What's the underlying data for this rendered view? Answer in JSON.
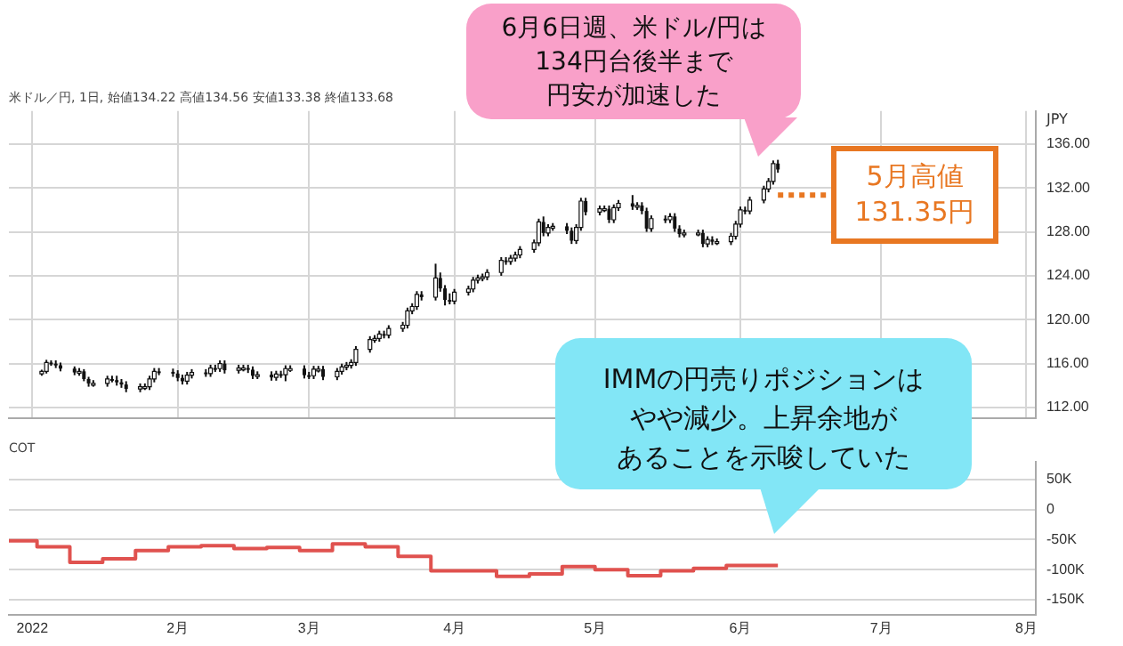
{
  "chart_data": [
    {
      "type": "candlestick",
      "title": "米ドル／円, 1日, 始値134.22 高値134.56 安値133.38 終値133.68",
      "ylabel": "JPY",
      "x": [
        "2022-01-03",
        "2022-01-04",
        "2022-01-05",
        "2022-01-06",
        "2022-01-07",
        "2022-01-10",
        "2022-01-11",
        "2022-01-12",
        "2022-01-13",
        "2022-01-14",
        "2022-01-17",
        "2022-01-18",
        "2022-01-19",
        "2022-01-20",
        "2022-01-21",
        "2022-01-24",
        "2022-01-25",
        "2022-01-26",
        "2022-01-27",
        "2022-01-28",
        "2022-01-31",
        "2022-02-01",
        "2022-02-02",
        "2022-02-03",
        "2022-02-04",
        "2022-02-07",
        "2022-02-08",
        "2022-02-09",
        "2022-02-10",
        "2022-02-11",
        "2022-02-14",
        "2022-02-15",
        "2022-02-16",
        "2022-02-17",
        "2022-02-18",
        "2022-02-21",
        "2022-02-22",
        "2022-02-23",
        "2022-02-24",
        "2022-02-25",
        "2022-02-28",
        "2022-03-01",
        "2022-03-02",
        "2022-03-03",
        "2022-03-04",
        "2022-03-07",
        "2022-03-08",
        "2022-03-09",
        "2022-03-10",
        "2022-03-11",
        "2022-03-14",
        "2022-03-15",
        "2022-03-16",
        "2022-03-17",
        "2022-03-18",
        "2022-03-21",
        "2022-03-22",
        "2022-03-23",
        "2022-03-24",
        "2022-03-25",
        "2022-03-28",
        "2022-03-29",
        "2022-03-30",
        "2022-03-31",
        "2022-04-01",
        "2022-04-04",
        "2022-04-05",
        "2022-04-06",
        "2022-04-07",
        "2022-04-08",
        "2022-04-11",
        "2022-04-12",
        "2022-04-13",
        "2022-04-14",
        "2022-04-15",
        "2022-04-18",
        "2022-04-19",
        "2022-04-20",
        "2022-04-21",
        "2022-04-22",
        "2022-04-25",
        "2022-04-26",
        "2022-04-27",
        "2022-04-28",
        "2022-04-29",
        "2022-05-02",
        "2022-05-03",
        "2022-05-04",
        "2022-05-05",
        "2022-05-06",
        "2022-05-09",
        "2022-05-10",
        "2022-05-11",
        "2022-05-12",
        "2022-05-13",
        "2022-05-16",
        "2022-05-17",
        "2022-05-18",
        "2022-05-19",
        "2022-05-20",
        "2022-05-23",
        "2022-05-24",
        "2022-05-25",
        "2022-05-26",
        "2022-05-27",
        "2022-05-30",
        "2022-05-31",
        "2022-06-01",
        "2022-06-02",
        "2022-06-03",
        "2022-06-06",
        "2022-06-07",
        "2022-06-08",
        "2022-06-09"
      ],
      "ohlc": [
        [
          115.08,
          115.45,
          114.9,
          115.3
        ],
        [
          115.3,
          116.35,
          115.1,
          116.1
        ],
        [
          116.1,
          116.3,
          115.8,
          116.0
        ],
        [
          116.0,
          116.3,
          115.6,
          115.85
        ],
        [
          115.85,
          116.1,
          115.3,
          115.55
        ],
        [
          115.55,
          115.75,
          114.95,
          115.2
        ],
        [
          115.2,
          115.6,
          114.9,
          115.3
        ],
        [
          115.3,
          115.5,
          114.4,
          114.6
        ],
        [
          114.6,
          114.8,
          113.9,
          114.2
        ],
        [
          114.2,
          114.5,
          113.9,
          114.2
        ],
        [
          114.2,
          114.9,
          113.9,
          114.6
        ],
        [
          114.6,
          114.9,
          114.3,
          114.5
        ],
        [
          114.5,
          114.9,
          114.0,
          114.3
        ],
        [
          114.3,
          114.6,
          113.8,
          114.1
        ],
        [
          114.1,
          114.4,
          113.4,
          113.7
        ],
        [
          113.7,
          114.2,
          113.4,
          113.9
        ],
        [
          113.9,
          114.2,
          113.6,
          113.9
        ],
        [
          113.9,
          114.9,
          113.6,
          114.6
        ],
        [
          114.6,
          115.6,
          114.3,
          115.3
        ],
        [
          115.3,
          115.6,
          114.95,
          115.25
        ],
        [
          115.25,
          115.55,
          114.8,
          115.1
        ],
        [
          115.1,
          115.4,
          114.4,
          114.7
        ],
        [
          114.7,
          115.0,
          114.1,
          114.4
        ],
        [
          114.4,
          115.25,
          114.1,
          114.95
        ],
        [
          114.95,
          115.5,
          114.65,
          115.2
        ],
        [
          115.2,
          115.5,
          114.8,
          115.1
        ],
        [
          115.1,
          115.9,
          114.8,
          115.6
        ],
        [
          115.6,
          115.9,
          115.25,
          115.55
        ],
        [
          115.55,
          116.3,
          115.25,
          116.0
        ],
        [
          116.0,
          116.3,
          115.1,
          115.4
        ],
        [
          115.4,
          115.9,
          115.1,
          115.6
        ],
        [
          115.6,
          115.9,
          115.3,
          115.6
        ],
        [
          115.6,
          115.9,
          115.15,
          115.45
        ],
        [
          115.45,
          115.75,
          114.6,
          114.9
        ],
        [
          114.9,
          115.3,
          114.6,
          115.0
        ],
        [
          115.0,
          115.3,
          114.45,
          114.75
        ],
        [
          114.75,
          115.35,
          114.45,
          115.05
        ],
        [
          115.05,
          115.35,
          114.7,
          115.0
        ],
        [
          115.0,
          115.85,
          114.4,
          115.55
        ],
        [
          115.55,
          115.85,
          115.25,
          115.55
        ],
        [
          115.55,
          115.85,
          114.65,
          114.95
        ],
        [
          114.95,
          115.25,
          114.6,
          114.9
        ],
        [
          114.9,
          115.8,
          114.6,
          115.5
        ],
        [
          115.5,
          115.8,
          115.2,
          115.5
        ],
        [
          115.5,
          115.8,
          114.5,
          114.8
        ],
        [
          114.8,
          115.6,
          114.5,
          115.3
        ],
        [
          115.3,
          116.0,
          115.0,
          115.7
        ],
        [
          115.7,
          116.15,
          115.4,
          115.85
        ],
        [
          115.85,
          116.4,
          115.55,
          116.1
        ],
        [
          116.1,
          117.6,
          115.8,
          117.3
        ],
        [
          117.3,
          118.5,
          117.0,
          118.2
        ],
        [
          118.2,
          118.6,
          117.9,
          118.3
        ],
        [
          118.3,
          119.0,
          118.0,
          118.7
        ],
        [
          118.7,
          119.0,
          118.3,
          118.6
        ],
        [
          118.6,
          119.5,
          118.3,
          119.2
        ],
        [
          119.2,
          119.8,
          118.9,
          119.5
        ],
        [
          119.5,
          121.1,
          119.2,
          120.8
        ],
        [
          120.8,
          121.5,
          120.5,
          121.2
        ],
        [
          121.2,
          122.6,
          120.9,
          122.3
        ],
        [
          122.3,
          122.6,
          121.75,
          122.05
        ],
        [
          122.05,
          125.1,
          121.75,
          123.8
        ],
        [
          123.8,
          124.3,
          122.55,
          122.85
        ],
        [
          122.85,
          123.15,
          121.3,
          121.8
        ],
        [
          121.8,
          122.4,
          121.4,
          121.7
        ],
        [
          121.7,
          122.8,
          121.4,
          122.5
        ],
        [
          122.5,
          123.1,
          122.2,
          122.8
        ],
        [
          122.8,
          123.9,
          122.5,
          123.6
        ],
        [
          123.6,
          124.1,
          123.3,
          123.8
        ],
        [
          123.8,
          124.2,
          123.5,
          123.9
        ],
        [
          123.9,
          124.6,
          123.6,
          124.3
        ],
        [
          124.3,
          125.7,
          124.0,
          125.4
        ],
        [
          125.4,
          125.7,
          125.0,
          125.3
        ],
        [
          125.3,
          125.9,
          125.0,
          125.6
        ],
        [
          125.6,
          126.2,
          125.3,
          125.9
        ],
        [
          125.9,
          126.7,
          125.6,
          126.4
        ],
        [
          126.4,
          127.3,
          126.1,
          127.0
        ],
        [
          127.0,
          129.2,
          126.7,
          128.9
        ],
        [
          128.9,
          129.4,
          127.6,
          127.9
        ],
        [
          127.9,
          128.7,
          127.6,
          128.4
        ],
        [
          128.4,
          128.8,
          128.1,
          128.5
        ],
        [
          128.5,
          128.8,
          127.8,
          128.1
        ],
        [
          128.1,
          128.4,
          126.9,
          127.2
        ],
        [
          127.2,
          128.7,
          126.9,
          128.4
        ],
        [
          128.4,
          131.1,
          128.1,
          130.8
        ],
        [
          130.8,
          131.1,
          129.5,
          129.8
        ],
        [
          129.8,
          130.4,
          129.5,
          130.1
        ],
        [
          130.1,
          130.4,
          129.8,
          130.1
        ],
        [
          130.1,
          130.4,
          128.8,
          129.1
        ],
        [
          129.1,
          130.5,
          128.8,
          130.2
        ],
        [
          130.2,
          130.9,
          129.9,
          130.6
        ],
        [
          130.6,
          131.35,
          130.0,
          130.3
        ],
        [
          130.3,
          130.7,
          130.0,
          130.4
        ],
        [
          130.4,
          130.7,
          129.6,
          129.9
        ],
        [
          129.9,
          130.2,
          128.0,
          128.3
        ],
        [
          128.3,
          129.5,
          128.0,
          129.2
        ],
        [
          129.2,
          129.5,
          128.8,
          129.1
        ],
        [
          129.1,
          129.7,
          128.8,
          129.4
        ],
        [
          129.4,
          129.7,
          128.0,
          128.3
        ],
        [
          128.3,
          128.6,
          127.5,
          127.8
        ],
        [
          127.8,
          128.2,
          127.5,
          127.9
        ],
        [
          127.9,
          128.2,
          127.6,
          127.9
        ],
        [
          127.9,
          128.2,
          126.6,
          126.9
        ],
        [
          126.9,
          127.6,
          126.6,
          127.3
        ],
        [
          127.3,
          127.6,
          126.8,
          127.1
        ],
        [
          127.1,
          127.4,
          126.8,
          127.1
        ],
        [
          127.1,
          127.9,
          126.8,
          127.6
        ],
        [
          127.6,
          129.0,
          127.3,
          128.7
        ],
        [
          128.7,
          130.3,
          128.4,
          130.0
        ],
        [
          130.0,
          130.3,
          129.6,
          129.9
        ],
        [
          129.9,
          131.2,
          129.6,
          130.9
        ],
        [
          130.9,
          132.2,
          130.6,
          131.9
        ],
        [
          131.9,
          132.9,
          131.6,
          132.6
        ],
        [
          132.6,
          134.5,
          132.3,
          134.22
        ],
        [
          134.22,
          134.56,
          133.38,
          133.68
        ]
      ],
      "xlim": [
        "2021-12-27",
        "2022-08-03"
      ],
      "xticks": [
        {
          "value": "2022-01-01",
          "label": null
        },
        {
          "value": "2022-02-01",
          "label": null
        },
        {
          "value": "2022-03-01",
          "label": null
        },
        {
          "value": "2022-04-01",
          "label": null
        },
        {
          "value": "2022-05-01",
          "label": null
        },
        {
          "value": "2022-06-01",
          "label": null
        },
        {
          "value": "2022-07-01",
          "label": null
        },
        {
          "value": "2022-08-01",
          "label": null
        }
      ],
      "ylim": [
        111,
        139
      ],
      "yticks": [
        {
          "value": 112,
          "label": "112.00"
        },
        {
          "value": 116,
          "label": "116.00"
        },
        {
          "value": 120,
          "label": "120.00"
        },
        {
          "value": 124,
          "label": "124.00"
        },
        {
          "value": 128,
          "label": "128.00"
        },
        {
          "value": 132,
          "label": "132.00"
        },
        {
          "value": 136,
          "label": "136.00"
        }
      ],
      "grid": true,
      "tick_labels": "y",
      "ref_lines": [
        {
          "axis": "y",
          "value": 131.35,
          "label": "5月高値\n131.35円",
          "color": "#e87722",
          "line_style": "dotted"
        }
      ],
      "annotations": [
        "6月6日週、米ドル/円は134円台後半まで円安が加速した"
      ]
    },
    {
      "type": "step",
      "title": "COT",
      "x": [
        "2021-12-27",
        "2022-01-02",
        "2022-01-09",
        "2022-01-16",
        "2022-01-23",
        "2022-01-30",
        "2022-02-06",
        "2022-02-13",
        "2022-02-20",
        "2022-02-27",
        "2022-03-06",
        "2022-03-13",
        "2022-03-20",
        "2022-03-27",
        "2022-04-03",
        "2022-04-10",
        "2022-04-17",
        "2022-04-24",
        "2022-05-01",
        "2022-05-08",
        "2022-05-15",
        "2022-05-22",
        "2022-05-29",
        "2022-06-09"
      ],
      "values": [
        -52,
        -62,
        -88,
        -82,
        -68,
        -62,
        -60,
        -65,
        -63,
        -68,
        -57,
        -62,
        -78,
        -102,
        -102,
        -111,
        -107,
        -95,
        -100,
        -110,
        -102,
        -98,
        -93,
        -93
      ],
      "color": "#e0524f",
      "xlim": [
        "2021-12-27",
        "2022-08-03"
      ],
      "xticks": [
        {
          "value": "2022-01-01",
          "label": "2022"
        },
        {
          "value": "2022-02-01",
          "label": "2月"
        },
        {
          "value": "2022-03-01",
          "label": "3月"
        },
        {
          "value": "2022-04-01",
          "label": "4月"
        },
        {
          "value": "2022-05-01",
          "label": "5月"
        },
        {
          "value": "2022-06-01",
          "label": "6月"
        },
        {
          "value": "2022-07-01",
          "label": "7月"
        },
        {
          "value": "2022-08-01",
          "label": "8月"
        }
      ],
      "ylim": [
        -175,
        80
      ],
      "yticks": [
        {
          "value": 50,
          "label": "50K"
        },
        {
          "value": 0,
          "label": "0"
        },
        {
          "value": -50,
          "label": "-50K"
        },
        {
          "value": -100,
          "label": "-100K"
        },
        {
          "value": -150,
          "label": "-150K"
        }
      ],
      "grid": "y",
      "annotations": [
        "IMMの円売りポジションはやや減少。上昇余地があることを示唆していた"
      ]
    }
  ]
}
